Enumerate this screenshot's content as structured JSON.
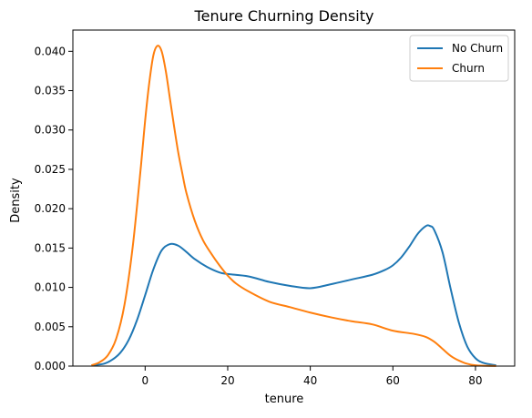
{
  "chart_data": {
    "type": "line",
    "title": "Tenure Churning Density",
    "xlabel": "tenure",
    "ylabel": "Density",
    "xlim": [
      -17.5,
      89.5
    ],
    "ylim": [
      0,
      0.0427
    ],
    "xticks": [
      0,
      20,
      40,
      60,
      80
    ],
    "yticks": [
      0.0,
      0.005,
      0.01,
      0.015,
      0.02,
      0.025,
      0.03,
      0.035,
      0.04
    ],
    "ytick_labels": [
      "0.000",
      "0.005",
      "0.010",
      "0.015",
      "0.020",
      "0.025",
      "0.030",
      "0.035",
      "0.040"
    ],
    "grid": false,
    "legend_position": "top-right",
    "series": [
      {
        "name": "No Churn",
        "color": "#1f77b4",
        "x": [
          -13,
          -10,
          -8,
          -6,
          -4,
          -2,
          0,
          2,
          4,
          6,
          8,
          10,
          12,
          15,
          18,
          20,
          25,
          30,
          35,
          40,
          45,
          50,
          55,
          58,
          60,
          62,
          64,
          66,
          68,
          69,
          70,
          72,
          74,
          76,
          78,
          80,
          82,
          85
        ],
        "y": [
          0.0001,
          0.0003,
          0.0008,
          0.0017,
          0.0033,
          0.0058,
          0.009,
          0.0123,
          0.0147,
          0.0155,
          0.0153,
          0.0145,
          0.0136,
          0.0126,
          0.0119,
          0.0117,
          0.0114,
          0.0107,
          0.0102,
          0.0099,
          0.0104,
          0.011,
          0.0116,
          0.0122,
          0.0128,
          0.0138,
          0.0152,
          0.0168,
          0.0178,
          0.0178,
          0.0173,
          0.0145,
          0.0098,
          0.0055,
          0.0025,
          0.001,
          0.0004,
          0.0001
        ]
      },
      {
        "name": "Churn",
        "color": "#ff7f0e",
        "x": [
          -13,
          -11,
          -9,
          -7,
          -5,
          -3,
          -1,
          0,
          1,
          2,
          3,
          4,
          5,
          6,
          7,
          8,
          9,
          10,
          12,
          14,
          16,
          18,
          20,
          22,
          25,
          30,
          35,
          40,
          45,
          50,
          55,
          60,
          65,
          68,
          70,
          72,
          74,
          76,
          78,
          80,
          82,
          85
        ],
        "y": [
          0.0001,
          0.0005,
          0.0014,
          0.0035,
          0.0078,
          0.0152,
          0.0255,
          0.0312,
          0.036,
          0.0395,
          0.0407,
          0.04,
          0.0375,
          0.034,
          0.0305,
          0.0272,
          0.0245,
          0.022,
          0.0185,
          0.016,
          0.0143,
          0.0128,
          0.0115,
          0.0105,
          0.0095,
          0.0082,
          0.0075,
          0.0068,
          0.0062,
          0.0057,
          0.0053,
          0.0045,
          0.0041,
          0.0037,
          0.0031,
          0.0022,
          0.0013,
          0.0007,
          0.0003,
          0.0001,
          5e-05,
          1e-05
        ]
      }
    ]
  }
}
